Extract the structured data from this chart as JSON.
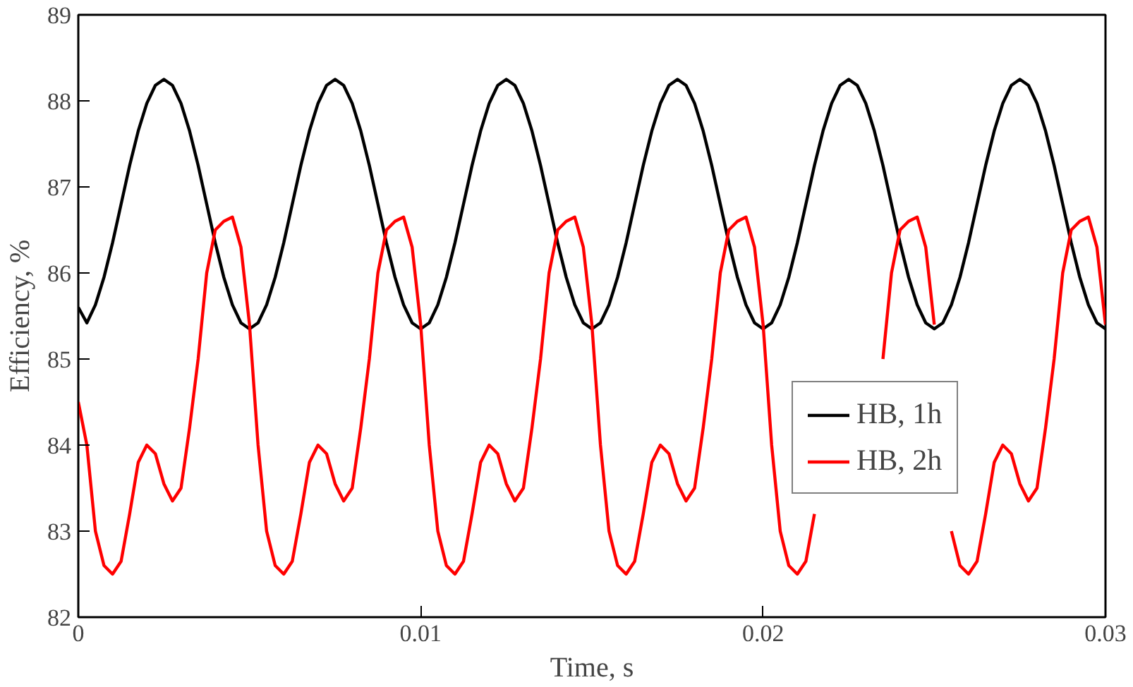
{
  "chart_data": {
    "type": "line",
    "xlabel": "Time, s",
    "ylabel": "Efficiency, %",
    "xlim": [
      0,
      0.03
    ],
    "xticks": [
      0,
      0.01,
      0.02,
      0.03
    ],
    "ylim": [
      82,
      89
    ],
    "yticks": [
      82,
      83,
      84,
      85,
      86,
      87,
      88,
      89
    ],
    "grid": false,
    "legend": "right",
    "marker": "none",
    "line_style": "solid",
    "x": [
      0,
      0.00025,
      0.0005,
      0.00075,
      0.001,
      0.00125,
      0.0015,
      0.00175,
      0.002,
      0.00225,
      0.0025,
      0.00275,
      0.003,
      0.00325,
      0.0035,
      0.00375,
      0.004,
      0.00425,
      0.0045,
      0.00475,
      0.005,
      0.00525,
      0.0055,
      0.00575,
      0.006,
      0.00625,
      0.0065,
      0.00675,
      0.007,
      0.00725,
      0.0075,
      0.00775,
      0.008,
      0.00825,
      0.0085,
      0.00875,
      0.009,
      0.00925,
      0.0095,
      0.00975,
      0.01,
      0.01025,
      0.0105,
      0.01075,
      0.011,
      0.01125,
      0.0115,
      0.01175,
      0.012,
      0.01225,
      0.0125,
      0.01275,
      0.013,
      0.01325,
      0.0135,
      0.01375,
      0.014,
      0.01425,
      0.0145,
      0.01475,
      0.015,
      0.01525,
      0.0155,
      0.01575,
      0.016,
      0.01625,
      0.0165,
      0.01675,
      0.017,
      0.01725,
      0.0175,
      0.01775,
      0.018,
      0.01825,
      0.0185,
      0.01875,
      0.019,
      0.01925,
      0.0195,
      0.01975,
      0.02,
      0.02025,
      0.0205,
      0.02075,
      0.021,
      0.02125,
      0.0215,
      0.02175,
      0.022,
      0.02225,
      0.0225,
      0.02275,
      0.023,
      0.02325,
      0.0235,
      0.02375,
      0.024,
      0.02425,
      0.0245,
      0.02475,
      0.025,
      0.02525,
      0.0255,
      0.02575,
      0.026,
      0.02625,
      0.0265,
      0.02675,
      0.027,
      0.02725,
      0.0275,
      0.02775,
      0.028,
      0.02825,
      0.0285,
      0.02875,
      0.029,
      0.02925,
      0.0295,
      0.02975,
      0.03
    ],
    "series": [
      {
        "name": "HB, 1h",
        "color": "#000000",
        "values": [
          85.6,
          85.42,
          85.63,
          85.95,
          86.35,
          86.8,
          87.25,
          87.65,
          87.97,
          88.18,
          88.25,
          88.18,
          87.97,
          87.65,
          87.25,
          86.8,
          86.35,
          85.95,
          85.63,
          85.42,
          85.35,
          85.42,
          85.63,
          85.95,
          86.35,
          86.8,
          87.25,
          87.65,
          87.97,
          88.18,
          88.25,
          88.18,
          87.97,
          87.65,
          87.25,
          86.8,
          86.35,
          85.95,
          85.63,
          85.42,
          85.35,
          85.42,
          85.63,
          85.95,
          86.35,
          86.8,
          87.25,
          87.65,
          87.97,
          88.18,
          88.25,
          88.18,
          87.97,
          87.65,
          87.25,
          86.8,
          86.35,
          85.95,
          85.63,
          85.42,
          85.35,
          85.42,
          85.63,
          85.95,
          86.35,
          86.8,
          87.25,
          87.65,
          87.97,
          88.18,
          88.25,
          88.18,
          87.97,
          87.65,
          87.25,
          86.8,
          86.35,
          85.95,
          85.63,
          85.42,
          85.35,
          85.42,
          85.63,
          85.95,
          86.35,
          86.8,
          87.25,
          87.65,
          87.97,
          88.18,
          88.25,
          88.18,
          87.97,
          87.65,
          87.25,
          86.8,
          86.35,
          85.95,
          85.63,
          85.42,
          85.35,
          85.42,
          85.63,
          85.95,
          86.35,
          86.8,
          87.25,
          87.65,
          87.97,
          88.18,
          88.25,
          88.18,
          87.97,
          87.65,
          87.25,
          86.8,
          86.35,
          85.95,
          85.63,
          85.42,
          85.35
        ]
      },
      {
        "name": "HB, 2h",
        "color": "#ff0000",
        "values": [
          84.5,
          84.0,
          83.0,
          82.6,
          82.5,
          82.65,
          83.2,
          83.8,
          84.0,
          83.9,
          83.55,
          83.35,
          83.5,
          84.2,
          85.0,
          86.0,
          86.5,
          86.6,
          86.65,
          86.3,
          85.4,
          84.0,
          83.0,
          82.6,
          82.5,
          82.65,
          83.2,
          83.8,
          84.0,
          83.9,
          83.55,
          83.35,
          83.5,
          84.2,
          85.0,
          86.0,
          86.5,
          86.6,
          86.65,
          86.3,
          85.4,
          84.0,
          83.0,
          82.6,
          82.5,
          82.65,
          83.2,
          83.8,
          84.0,
          83.9,
          83.55,
          83.35,
          83.5,
          84.2,
          85.0,
          86.0,
          86.5,
          86.6,
          86.65,
          86.3,
          85.4,
          84.0,
          83.0,
          82.6,
          82.5,
          82.65,
          83.2,
          83.8,
          84.0,
          83.9,
          83.55,
          83.35,
          83.5,
          84.2,
          85.0,
          86.0,
          86.5,
          86.6,
          86.65,
          86.3,
          85.4,
          84.0,
          83.0,
          82.6,
          82.5,
          82.65,
          83.2,
          null,
          null,
          null,
          null,
          null,
          null,
          null,
          85.0,
          86.0,
          86.5,
          86.6,
          86.65,
          86.3,
          85.4,
          null,
          83.0,
          82.6,
          82.5,
          82.65,
          83.2,
          83.8,
          84.0,
          83.9,
          83.55,
          83.35,
          83.5,
          84.2,
          85.0,
          86.0,
          86.5,
          86.6,
          86.65,
          86.3,
          85.4
        ]
      }
    ]
  }
}
